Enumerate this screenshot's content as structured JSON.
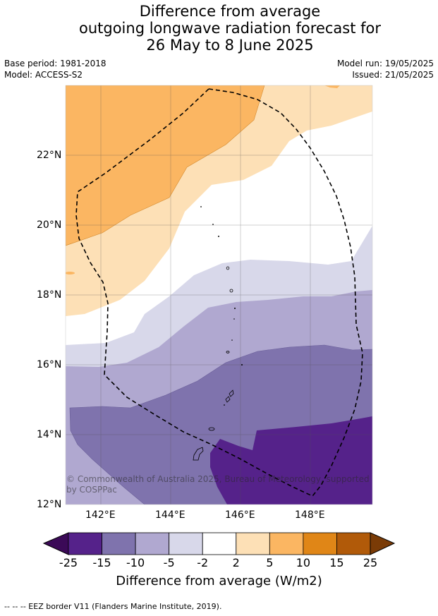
{
  "title": {
    "line1": "Difference from average",
    "line2": "outgoing longwave radiation forecast for",
    "line3": "26 May to 8 June 2025"
  },
  "meta": {
    "base_period": "Base period: 1981-2018",
    "model": "Model: ACCESS-S2",
    "model_run": "Model run: 19/05/2025",
    "issued": "Issued: 21/05/2025"
  },
  "map": {
    "lat_labels": [
      "22°N",
      "20°N",
      "18°N",
      "16°N",
      "14°N",
      "12°N"
    ],
    "lon_labels": [
      "142°E",
      "144°E",
      "146°E",
      "148°E"
    ],
    "copyright": "© Commonwealth of Australia 2025, Bureau of Meteorology, supported by COSPPac"
  },
  "colorbar": {
    "ticks": [
      "-25",
      "-15",
      "-10",
      "-5",
      "-2",
      "2",
      "5",
      "10",
      "15",
      "25"
    ],
    "colors": [
      "#3b0a57",
      "#55228a",
      "#7f73ad",
      "#b0a8d0",
      "#d8d8ea",
      "#ffffff",
      "#fde0b6",
      "#fbb662",
      "#e08617",
      "#b15a09",
      "#7a3b06"
    ],
    "label": "Difference from average (W/m2)"
  },
  "footer": "--  --  -- EEZ border V11 (Flanders Marine Institute, 2019)."
}
